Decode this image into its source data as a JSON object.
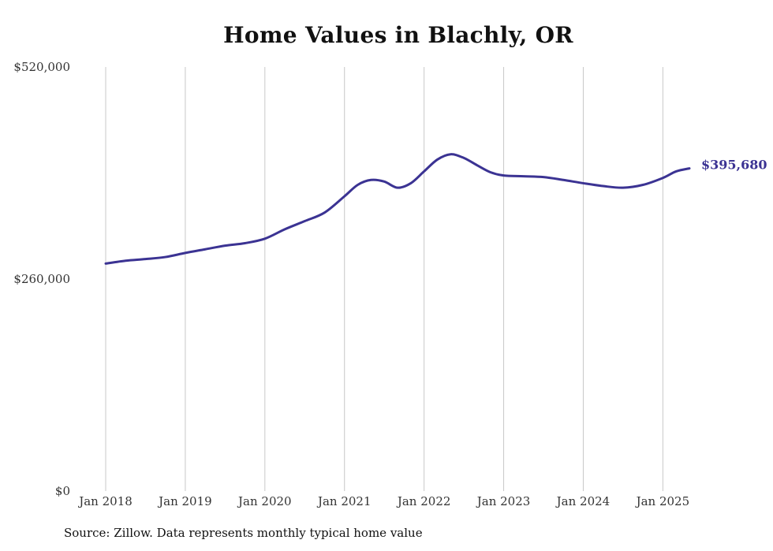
{
  "chart_data": {
    "type": "line",
    "title": "Home Values in Blachly, OR",
    "xlabel": "",
    "ylabel": "",
    "ylim": [
      0,
      520000
    ],
    "yticks": [
      0,
      260000,
      520000
    ],
    "ytick_labels": [
      "$0",
      "$260,000",
      "$520,000"
    ],
    "xlim": [
      "2018-01",
      "2025-05"
    ],
    "xticks": [
      "2018-01",
      "2019-01",
      "2020-01",
      "2021-01",
      "2022-01",
      "2023-01",
      "2024-01",
      "2025-01"
    ],
    "xtick_labels": [
      "Jan 2018",
      "Jan 2019",
      "Jan 2020",
      "Jan 2021",
      "Jan 2022",
      "Jan 2023",
      "Jan 2024",
      "Jan 2025"
    ],
    "grid": "vertical",
    "line_color": "#3b3393",
    "series": [
      {
        "x": [
          "2018-01",
          "2018-04",
          "2018-07",
          "2018-10",
          "2019-01",
          "2019-04",
          "2019-07",
          "2019-10",
          "2020-01",
          "2020-04",
          "2020-07",
          "2020-10",
          "2021-01",
          "2021-03",
          "2021-05",
          "2021-07",
          "2021-09",
          "2021-11",
          "2022-01",
          "2022-03",
          "2022-05",
          "2022-07",
          "2022-09",
          "2022-11",
          "2023-01",
          "2023-04",
          "2023-07",
          "2023-10",
          "2024-01",
          "2024-04",
          "2024-07",
          "2024-10",
          "2025-01",
          "2025-03",
          "2025-05"
        ],
        "values": [
          279000,
          282500,
          284500,
          287000,
          292000,
          296500,
          301000,
          304000,
          309500,
          321000,
          331000,
          341500,
          361500,
          375500,
          381500,
          379500,
          372000,
          377500,
          392000,
          406500,
          413000,
          408500,
          399500,
          391000,
          387000,
          386000,
          385000,
          381500,
          377500,
          374000,
          372000,
          375500,
          384000,
          392000,
          395680
        ]
      }
    ],
    "end_label": "$395,680",
    "source": "Source: Zillow. Data represents monthly typical home value"
  }
}
